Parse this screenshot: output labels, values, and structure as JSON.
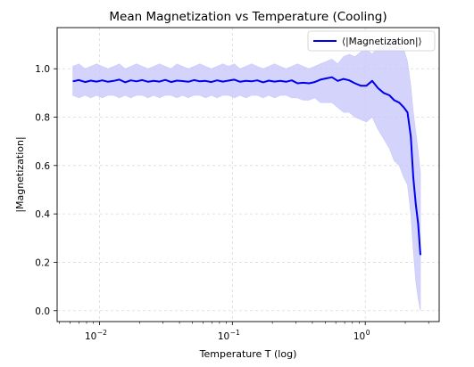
{
  "chart_data": {
    "type": "line",
    "title": "Mean Magnetization vs Temperature (Cooling)",
    "xlabel": "Temperature T (log)",
    "ylabel": "|Magnetization|",
    "x_scale": "log",
    "xlim": [
      0.0048,
      3.6
    ],
    "ylim": [
      -0.045,
      1.17
    ],
    "x_ticks": [
      {
        "value": 0.01,
        "base": "10",
        "exp": "−2"
      },
      {
        "value": 0.1,
        "base": "10",
        "exp": "−1"
      },
      {
        "value": 1,
        "base": "10",
        "exp": "0"
      }
    ],
    "y_ticks": [
      0.0,
      0.2,
      0.4,
      0.6,
      0.8,
      1.0
    ],
    "y_tick_labels": [
      "0.0",
      "0.2",
      "0.4",
      "0.6",
      "0.8",
      "1.0"
    ],
    "grid": true,
    "legend_position": "top-right",
    "series": [
      {
        "name": "⟨|Magnetization|⟩",
        "color": "#0000ee",
        "band_color": "#c8c8fa",
        "x": [
          0.0063,
          0.007,
          0.0078,
          0.0086,
          0.0095,
          0.0105,
          0.0116,
          0.0128,
          0.0141,
          0.0156,
          0.0172,
          0.019,
          0.021,
          0.0232,
          0.0256,
          0.0283,
          0.0313,
          0.0346,
          0.0382,
          0.0422,
          0.0466,
          0.0515,
          0.0569,
          0.0628,
          0.0694,
          0.0767,
          0.0847,
          0.0936,
          0.1034,
          0.1142,
          0.1262,
          0.1394,
          0.154,
          0.1701,
          0.1879,
          0.2076,
          0.2293,
          0.2533,
          0.2798,
          0.3091,
          0.3415,
          0.3772,
          0.4167,
          0.4603,
          0.5085,
          0.5617,
          0.6205,
          0.6854,
          0.7572,
          0.8364,
          0.924,
          1.0207,
          1.1275,
          1.2455,
          1.3759,
          1.52,
          1.65,
          1.8,
          1.95,
          2.08,
          2.2,
          2.3,
          2.4,
          2.5,
          2.6
        ],
        "y": [
          0.948,
          0.953,
          0.945,
          0.951,
          0.947,
          0.952,
          0.946,
          0.95,
          0.955,
          0.944,
          0.952,
          0.948,
          0.953,
          0.946,
          0.95,
          0.947,
          0.954,
          0.945,
          0.951,
          0.949,
          0.946,
          0.953,
          0.948,
          0.95,
          0.945,
          0.952,
          0.947,
          0.951,
          0.955,
          0.946,
          0.95,
          0.948,
          0.952,
          0.944,
          0.951,
          0.947,
          0.95,
          0.946,
          0.952,
          0.94,
          0.942,
          0.94,
          0.945,
          0.955,
          0.96,
          0.965,
          0.95,
          0.958,
          0.952,
          0.94,
          0.93,
          0.93,
          0.95,
          0.92,
          0.9,
          0.89,
          0.87,
          0.86,
          0.84,
          0.82,
          0.72,
          0.55,
          0.44,
          0.36,
          0.23
        ],
        "y_upper": [
          1.01,
          1.02,
          1.0,
          1.01,
          1.02,
          1.01,
          1.0,
          1.01,
          1.02,
          1.0,
          1.01,
          1.02,
          1.01,
          1.0,
          1.01,
          1.02,
          1.01,
          1.0,
          1.02,
          1.01,
          1.0,
          1.01,
          1.02,
          1.01,
          1.0,
          1.01,
          1.02,
          1.01,
          1.02,
          1.0,
          1.01,
          1.02,
          1.01,
          1.0,
          1.01,
          1.02,
          1.01,
          1.0,
          1.01,
          1.02,
          1.01,
          1.0,
          1.01,
          1.02,
          1.03,
          1.04,
          1.02,
          1.05,
          1.06,
          1.05,
          1.07,
          1.08,
          1.06,
          1.09,
          1.1,
          1.12,
          1.13,
          1.1,
          1.08,
          1.03,
          0.93,
          0.82,
          0.74,
          0.66,
          0.57
        ],
        "y_lower": [
          0.89,
          0.88,
          0.89,
          0.88,
          0.89,
          0.88,
          0.89,
          0.89,
          0.88,
          0.89,
          0.88,
          0.89,
          0.89,
          0.88,
          0.89,
          0.88,
          0.89,
          0.89,
          0.88,
          0.89,
          0.88,
          0.89,
          0.89,
          0.88,
          0.89,
          0.88,
          0.89,
          0.89,
          0.88,
          0.89,
          0.88,
          0.89,
          0.89,
          0.88,
          0.89,
          0.88,
          0.89,
          0.89,
          0.88,
          0.88,
          0.87,
          0.87,
          0.88,
          0.86,
          0.86,
          0.86,
          0.84,
          0.82,
          0.82,
          0.8,
          0.79,
          0.78,
          0.8,
          0.75,
          0.71,
          0.67,
          0.62,
          0.6,
          0.55,
          0.52,
          0.4,
          0.25,
          0.12,
          0.05,
          0.0
        ]
      }
    ]
  }
}
